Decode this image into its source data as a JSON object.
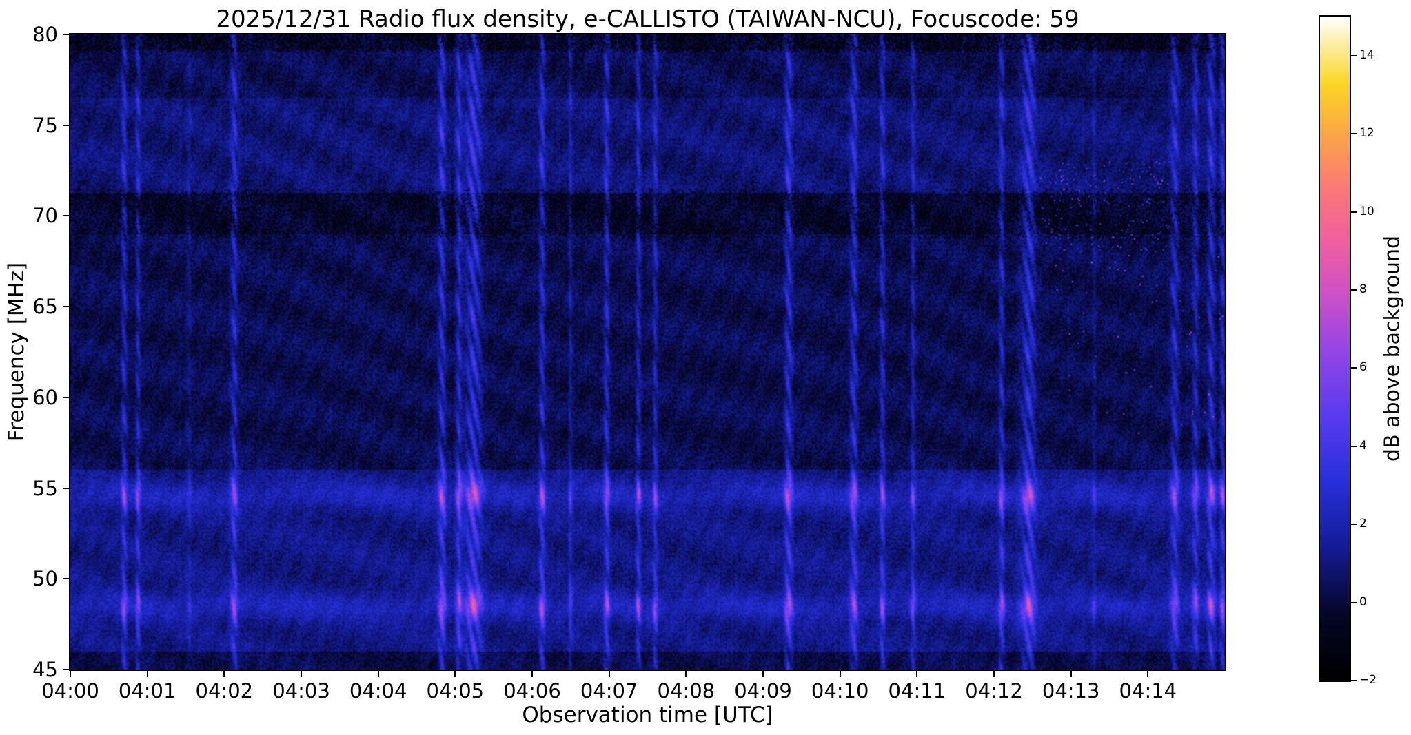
{
  "chart_data": {
    "type": "heatmap",
    "title": "2025/12/31  Radio flux density, e-CALLISTO (TAIWAN-NCU), Focuscode: 59",
    "xlabel": "Observation time [UTC]",
    "ylabel": "Frequency [MHz]",
    "date": "2025/12/31",
    "network": "e-CALLISTO",
    "station": "TAIWAN-NCU",
    "focuscode": "59",
    "x_tick_labels": [
      "04:00",
      "04:01",
      "04:02",
      "04:03",
      "04:04",
      "04:05",
      "04:06",
      "04:07",
      "04:08",
      "04:09",
      "04:10",
      "04:11",
      "04:12",
      "04:13",
      "04:14"
    ],
    "x_range_minutes": [
      0,
      15
    ],
    "y_ticks_mhz": [
      45,
      50,
      55,
      60,
      65,
      70,
      75,
      80
    ],
    "y_range_mhz": [
      45,
      80
    ],
    "value_range_db": [
      -2,
      15
    ],
    "colorbar": {
      "label": "dB above background",
      "ticks": [
        -2,
        0,
        2,
        4,
        6,
        8,
        10,
        12,
        14
      ],
      "min_db": -2,
      "max_db": 15,
      "colormap_stops": [
        [
          0.0,
          "#000000"
        ],
        [
          0.1,
          "#060628"
        ],
        [
          0.2,
          "#141c96"
        ],
        [
          0.3,
          "#2830dc"
        ],
        [
          0.4,
          "#5a3cf0"
        ],
        [
          0.5,
          "#9646e6"
        ],
        [
          0.58,
          "#cd50c8"
        ],
        [
          0.66,
          "#f05fa0"
        ],
        [
          0.74,
          "#fa7878"
        ],
        [
          0.82,
          "#fca448"
        ],
        [
          0.9,
          "#fad724"
        ],
        [
          1.0,
          "#ffffff"
        ]
      ]
    },
    "features": {
      "description": "Solar radio spectrogram; dark-blue noise background with bright-blue vertical interference bands (chevron texture), pink horizontal RFI lines near 48.5 and 54.6 MHz that brighten inside the vertical bands, dark speckled bands near 69-71 MHz and above 76.5 MHz, and scattered bright speckles after 04:13.",
      "interference_lines_mhz": [
        48.5,
        54.6
      ],
      "dark_bands_mhz": [
        [
          69.0,
          71.3
        ],
        [
          76.5,
          80.0
        ]
      ],
      "vertical_bands_min_width_strength": [
        [
          0.7,
          0.035,
          2.4
        ],
        [
          0.88,
          0.03,
          2.2
        ],
        [
          1.55,
          0.03,
          0.9
        ],
        [
          2.13,
          0.045,
          2.4
        ],
        [
          4.83,
          0.05,
          2.8
        ],
        [
          5.05,
          0.04,
          2.6
        ],
        [
          5.24,
          0.1,
          3.0
        ],
        [
          6.13,
          0.04,
          2.6
        ],
        [
          6.5,
          0.025,
          1.5
        ],
        [
          6.97,
          0.035,
          2.6
        ],
        [
          7.38,
          0.03,
          2.4
        ],
        [
          7.6,
          0.03,
          2.2
        ],
        [
          9.33,
          0.05,
          2.8
        ],
        [
          10.18,
          0.05,
          2.6
        ],
        [
          10.55,
          0.035,
          2.4
        ],
        [
          10.95,
          0.03,
          2.0
        ],
        [
          12.1,
          0.035,
          2.4
        ],
        [
          12.45,
          0.09,
          2.8
        ],
        [
          13.3,
          0.025,
          1.0
        ],
        [
          14.35,
          0.05,
          2.4
        ],
        [
          14.62,
          0.04,
          2.2
        ],
        [
          14.82,
          0.05,
          2.6
        ],
        [
          14.97,
          0.03,
          2.4
        ]
      ]
    }
  }
}
